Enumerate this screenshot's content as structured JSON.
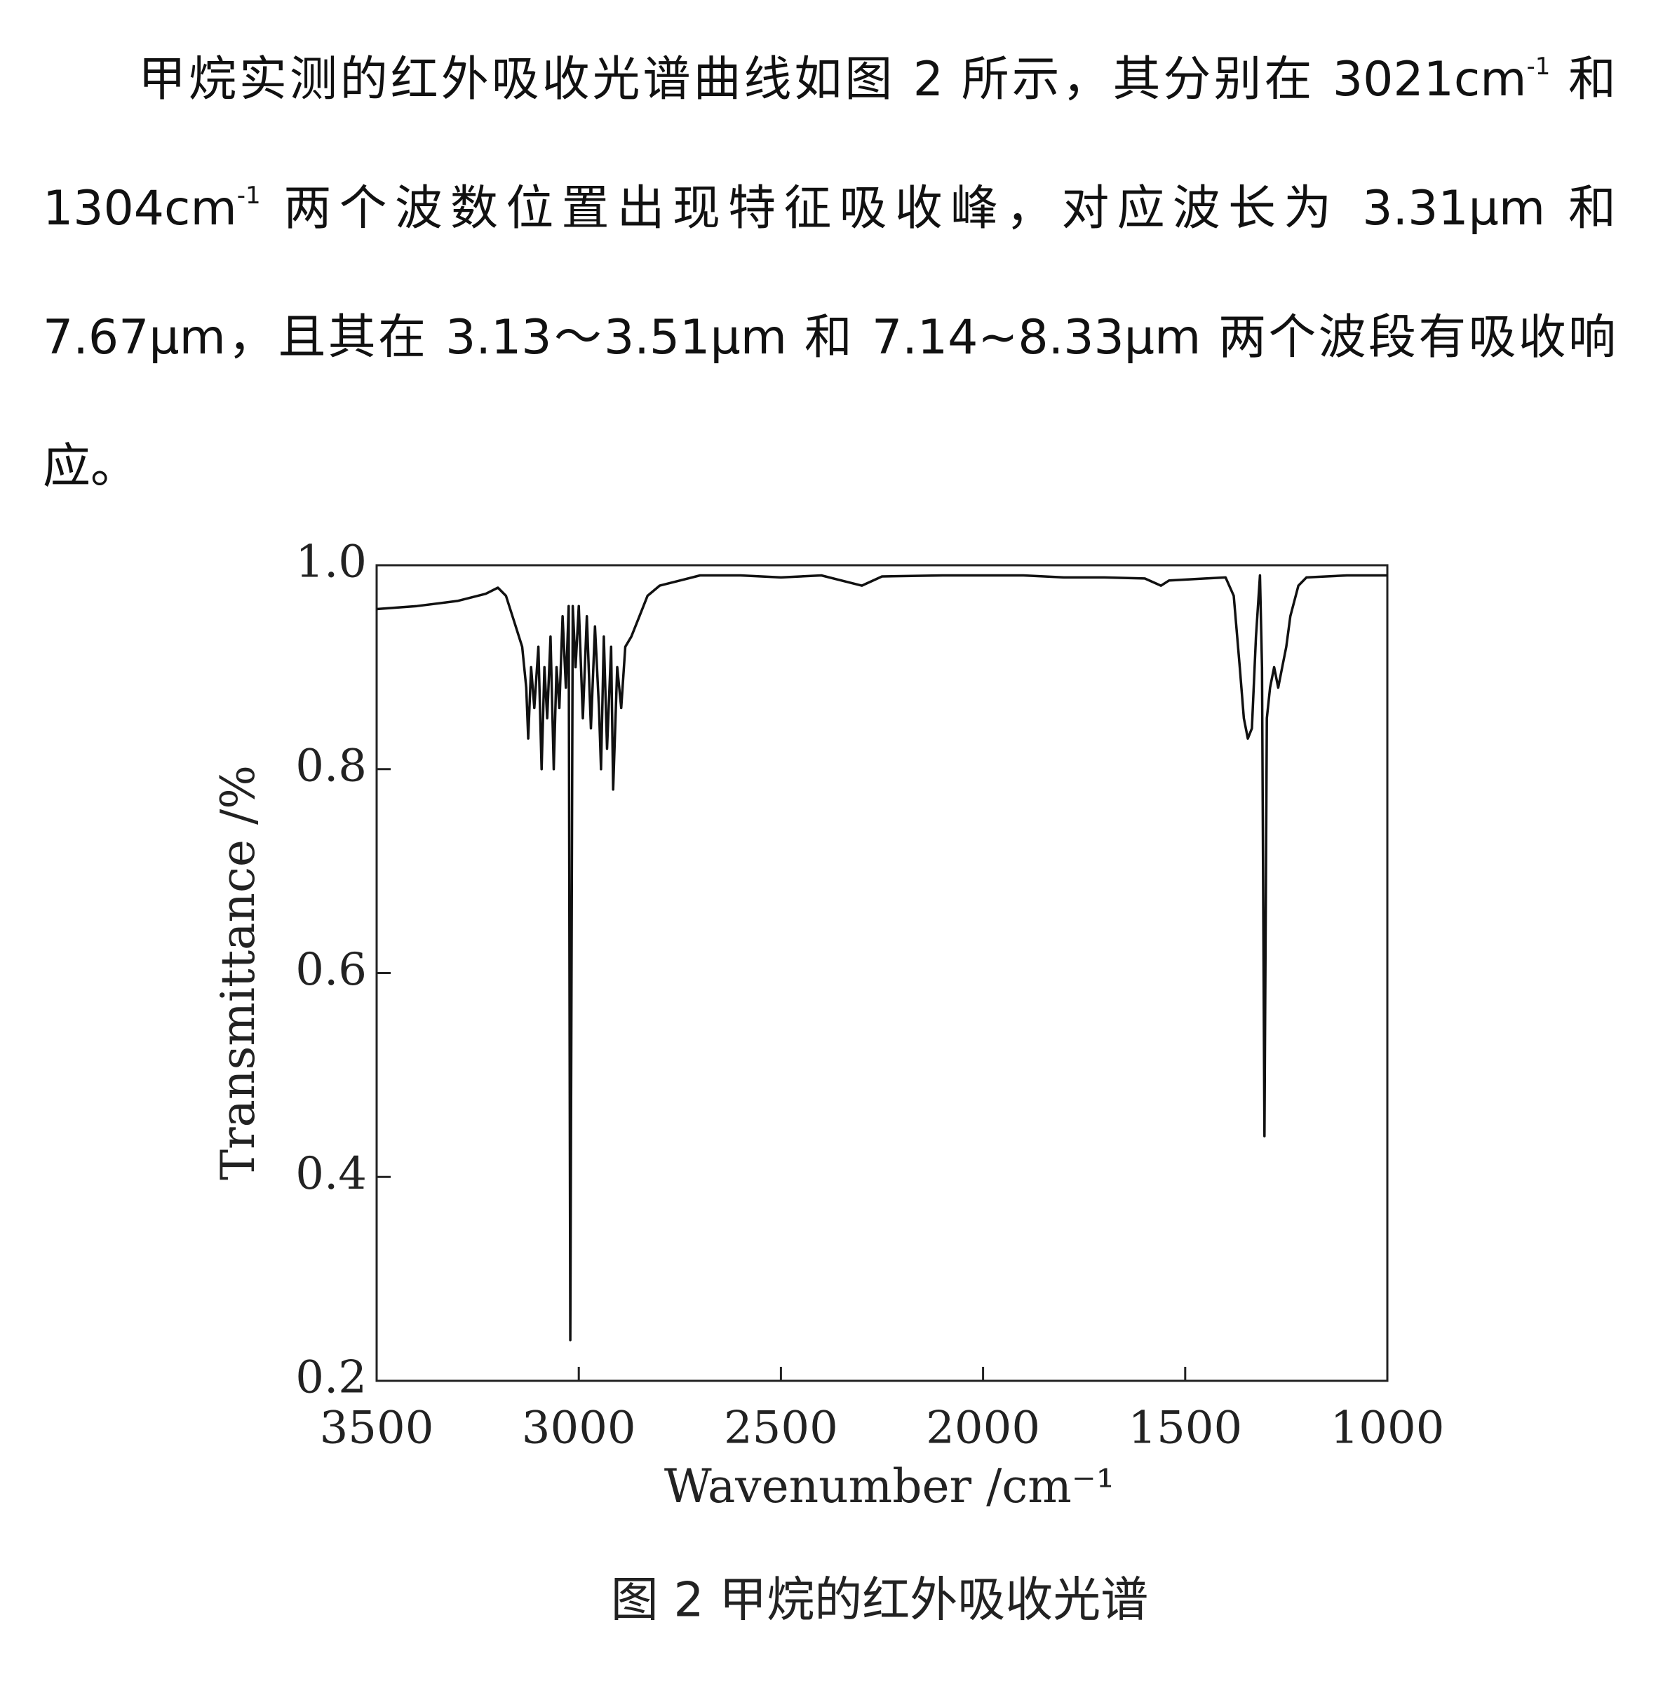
{
  "paragraph": [
    "甲烷实测的红外吸收光谱曲线如图 2 所示，其分别在 3021cm",
    "-1",
    " 和 1304cm",
    "-1",
    " 两个波数位置出现特征吸收峰，对应波长为 3.31μm 和 7.67μm，且其在 3.13～3.51μm 和 7.14~8.33μm 两个波段有吸收响应。"
  ],
  "chart_data": {
    "type": "line",
    "x_label": "Wavenumber /cm⁻¹",
    "y_label": "Transmittance /%",
    "xlim": [
      3500,
      1000
    ],
    "xticks": [
      3500,
      3000,
      2500,
      2000,
      1500,
      1000
    ],
    "ylim": [
      0.2,
      1.0
    ],
    "yticks": [
      0.2,
      0.4,
      0.6,
      0.8,
      {
        "value": 1.0,
        "label": "1.0"
      }
    ],
    "x": [
      3500,
      3400,
      3300,
      3230,
      3200,
      3180,
      3160,
      3140,
      3130,
      3125,
      3118,
      3110,
      3100,
      3092,
      3085,
      3078,
      3070,
      3062,
      3055,
      3048,
      3040,
      3032,
      3025,
      3021,
      3015,
      3008,
      3000,
      2990,
      2980,
      2970,
      2960,
      2950,
      2945,
      2938,
      2930,
      2920,
      2915,
      2905,
      2895,
      2885,
      2870,
      2850,
      2830,
      2800,
      2750,
      2700,
      2600,
      2500,
      2400,
      2350,
      2300,
      2250,
      2100,
      1900,
      1800,
      1700,
      1600,
      1560,
      1540,
      1450,
      1400,
      1380,
      1365,
      1355,
      1345,
      1335,
      1325,
      1315,
      1310,
      1304,
      1298,
      1290,
      1280,
      1270,
      1260,
      1250,
      1240,
      1220,
      1200,
      1100,
      1000
    ],
    "series": [
      {
        "color": "#111111",
        "values": [
          0.957,
          0.96,
          0.965,
          0.972,
          0.978,
          0.97,
          0.945,
          0.92,
          0.88,
          0.83,
          0.9,
          0.86,
          0.92,
          0.8,
          0.9,
          0.85,
          0.93,
          0.8,
          0.9,
          0.86,
          0.95,
          0.88,
          0.96,
          0.24,
          0.96,
          0.9,
          0.96,
          0.85,
          0.95,
          0.84,
          0.94,
          0.86,
          0.8,
          0.93,
          0.82,
          0.92,
          0.78,
          0.9,
          0.86,
          0.92,
          0.93,
          0.95,
          0.97,
          0.98,
          0.985,
          0.99,
          0.99,
          0.988,
          0.99,
          0.985,
          0.98,
          0.989,
          0.99,
          0.99,
          0.988,
          0.988,
          0.987,
          0.98,
          0.985,
          0.987,
          0.988,
          0.97,
          0.9,
          0.85,
          0.83,
          0.84,
          0.93,
          0.99,
          0.9,
          0.44,
          0.85,
          0.88,
          0.9,
          0.88,
          0.9,
          0.92,
          0.95,
          0.98,
          0.988,
          0.99,
          0.99
        ]
      }
    ]
  },
  "caption": "图 2 甲烷的红外吸收光谱"
}
